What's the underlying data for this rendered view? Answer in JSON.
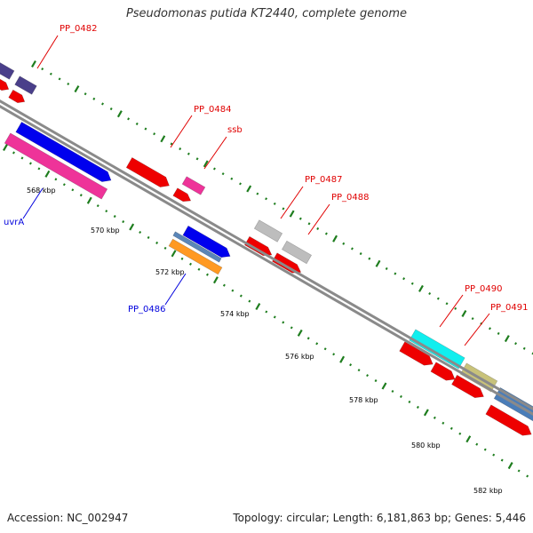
{
  "title": "Pseudomonas putida KT2440, complete genome",
  "footer": {
    "accession": "Accession: NC_002947",
    "summary": "Topology: circular; Length: 6,181,863 bp; Genes: 5,446"
  },
  "colors": {
    "backbone": "#8a8a8a",
    "tick": "#1e7d1e",
    "red_gene": "#ee0000",
    "pink_gene": "#ee3399",
    "blue_gene": "#0000ee",
    "slate_gene": "#4a3f8a",
    "gray_gene": "#bdbdbd",
    "cyan_gene": "#11eeee",
    "olive_gene": "#c8c27a",
    "steelblue_gene": "#4a7db8",
    "orange_gene": "#ff9922",
    "lightblue_gene": "#5a86b8"
  },
  "kbp_ticks": [
    {
      "label": "568 kbp"
    },
    {
      "label": "570 kbp"
    },
    {
      "label": "572 kbp"
    },
    {
      "label": "574 kbp"
    },
    {
      "label": "576 kbp"
    },
    {
      "label": "578 kbp"
    },
    {
      "label": "580 kbp"
    },
    {
      "label": "582 kbp"
    }
  ],
  "gene_labels": [
    {
      "name": "PP_0482",
      "color": "red"
    },
    {
      "name": "PP_0484",
      "color": "red"
    },
    {
      "name": "ssb",
      "color": "red"
    },
    {
      "name": "PP_0487",
      "color": "red"
    },
    {
      "name": "PP_0488",
      "color": "red"
    },
    {
      "name": "PP_0490",
      "color": "red"
    },
    {
      "name": "PP_0491",
      "color": "red"
    },
    {
      "name": "uvrA",
      "color": "blue"
    },
    {
      "name": "PP_0486",
      "color": "blue"
    }
  ]
}
